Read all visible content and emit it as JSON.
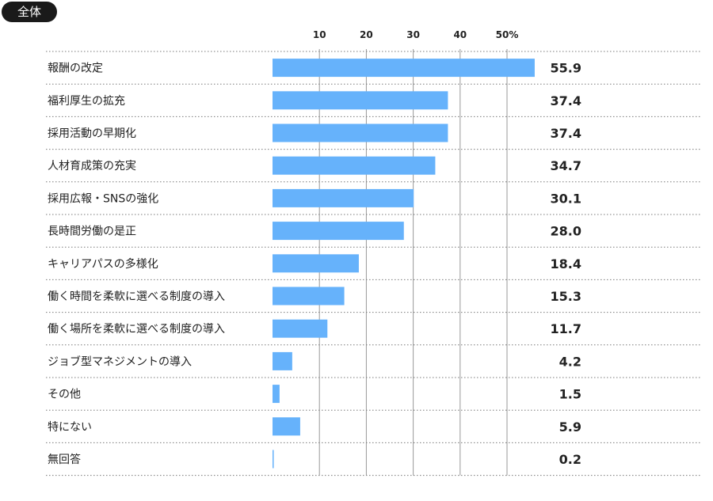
{
  "badge": {
    "label": "全体"
  },
  "chart_data": {
    "type": "bar",
    "orientation": "horizontal",
    "xlim": [
      0,
      50
    ],
    "tick_values": [
      10,
      20,
      30,
      40,
      50
    ],
    "tick_labels": [
      "10",
      "20",
      "30",
      "40",
      "50%"
    ],
    "bar_color": "#66b2fb",
    "grid": true,
    "categories": [
      "報酬の改定",
      "福利厚生の拡充",
      "採用活動の早期化",
      "人材育成策の充実",
      "採用広報・SNSの強化",
      "長時間労働の是正",
      "キャリアパスの多様化",
      "働く時間を柔軟に選べる制度の導入",
      "働く場所を柔軟に選べる制度の導入",
      "ジョブ型マネジメントの導入",
      "その他",
      "特にない",
      "無回答"
    ],
    "values": [
      55.9,
      37.4,
      37.4,
      34.7,
      30.1,
      28.0,
      18.4,
      15.3,
      11.7,
      4.2,
      1.5,
      5.9,
      0.2
    ],
    "value_labels": [
      "55.9",
      "37.4",
      "37.4",
      "34.7",
      "30.1",
      "28.0",
      "18.4",
      "15.3",
      "11.7",
      "4.2",
      "1.5",
      "5.9",
      "0.2"
    ]
  }
}
